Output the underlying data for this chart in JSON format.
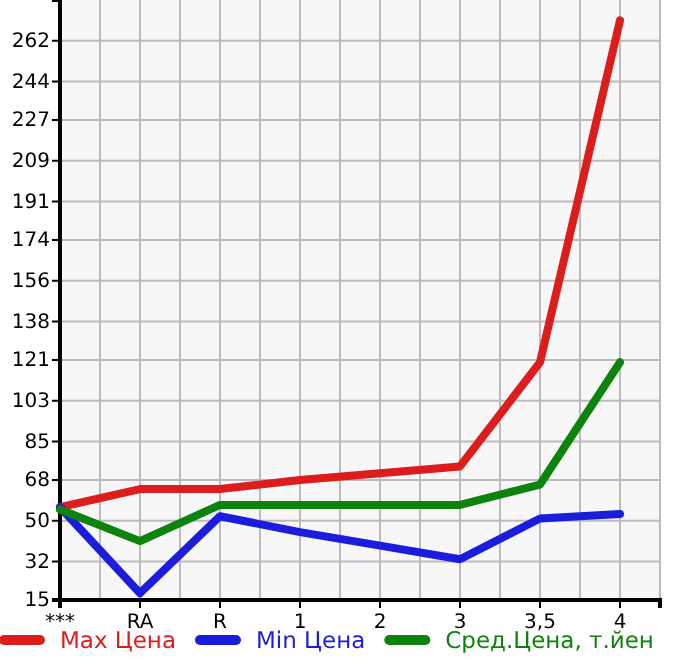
{
  "chart_data": {
    "type": "line",
    "categories": [
      "***",
      "RA",
      "R",
      "1",
      "2",
      "3",
      "3,5",
      "4"
    ],
    "series": [
      {
        "name": "Max Цена",
        "color": "#dd1c1c",
        "values": [
          56,
          64,
          64,
          68,
          71,
          74,
          120,
          271
        ]
      },
      {
        "name": "Min Цена",
        "color": "#1c1cdd",
        "values": [
          56,
          18,
          52,
          45,
          39,
          33,
          51,
          53
        ]
      },
      {
        "name": "Сред.Цена, т.йен",
        "color": "#0c830c",
        "values": [
          55,
          41,
          57,
          57,
          57,
          57,
          66,
          120
        ]
      }
    ],
    "ylim": [
      15,
      280
    ],
    "yticks": [
      15,
      32,
      50,
      68,
      85,
      103,
      121,
      138,
      156,
      174,
      191,
      209,
      227,
      244,
      262
    ],
    "grid": true,
    "legend": "bottom",
    "marker": "none",
    "line_style": "solid"
  }
}
